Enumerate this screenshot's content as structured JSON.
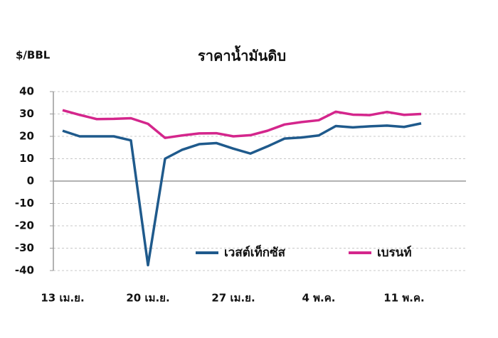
{
  "chart_data": {
    "type": "line",
    "title": "ราคาน้ำมันดิบ",
    "y_label": "$/BBL",
    "categories": [
      "13 เม.ย.",
      null,
      null,
      null,
      null,
      "20 เม.ย.",
      null,
      null,
      null,
      null,
      "27 เม.ย.",
      null,
      null,
      null,
      null,
      "4 พ.ค.",
      null,
      null,
      null,
      null,
      "11 พ.ค.",
      null
    ],
    "series": [
      {
        "name": "เวสต์เท็กซัส",
        "color": "#1f5a8c",
        "values": [
          22.5,
          20,
          20,
          20,
          18.2,
          -37.6,
          10,
          14,
          16.5,
          17,
          14.5,
          12.3,
          15.5,
          19,
          19.5,
          20.4,
          24.6,
          24,
          24.5,
          24.8,
          24.2,
          25.8
        ]
      },
      {
        "name": "เบรนท์",
        "color": "#d4268c",
        "values": [
          31.7,
          29.6,
          27.7,
          27.8,
          28.1,
          25.6,
          19.3,
          20.4,
          21.3,
          21.4,
          20,
          20.5,
          22.5,
          25.3,
          26.4,
          27.2,
          31,
          29.7,
          29.5,
          30.9,
          29.6,
          30
        ]
      }
    ],
    "ylim": [
      -40,
      40
    ],
    "yticks": [
      40,
      30,
      20,
      10,
      0,
      -10,
      -20,
      -30,
      -40
    ],
    "grid": true,
    "legend": "lower right"
  }
}
